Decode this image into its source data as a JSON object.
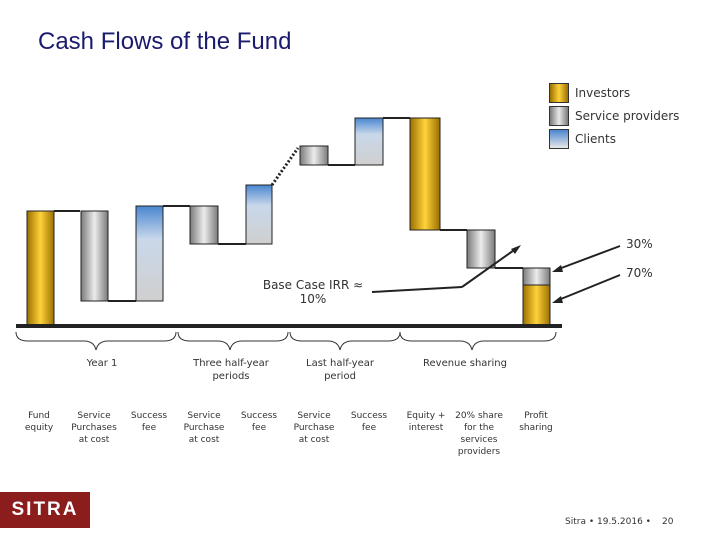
{
  "title": "Cash Flows of the Fund",
  "legend": [
    {
      "label": "Investors",
      "color": "#f0b800"
    },
    {
      "label": "Service providers",
      "color": "#b5b5b5"
    },
    {
      "label": "Clients",
      "color": "#6ea6e0"
    }
  ],
  "chart_data": {
    "type": "waterfall",
    "title": "Cash Flows of the Fund",
    "series": [
      "Investors",
      "Service providers",
      "Clients"
    ],
    "bars": [
      {
        "label": "Fund equity",
        "series": "Investors"
      },
      {
        "label": "Service Purchases at cost",
        "series": "Service providers"
      },
      {
        "label": "Success fee",
        "series": "Clients"
      },
      {
        "label": "Service Purchase at cost",
        "series": "Service providers"
      },
      {
        "label": "Success fee",
        "series": "Clients"
      },
      {
        "label": "Service Purchase at cost",
        "series": "Service providers"
      },
      {
        "label": "Success fee",
        "series": "Clients"
      },
      {
        "label": "Equity + interest",
        "series": "Investors"
      },
      {
        "label": "20% share for the services providers",
        "series": "Service providers"
      },
      {
        "label": "Profit sharing",
        "series": "Investors"
      },
      {
        "label": "Profit sharing",
        "series": "Service providers"
      }
    ]
  },
  "phases": [
    {
      "label": "Year 1"
    },
    {
      "label": "Three half-year periods"
    },
    {
      "label": "Last half-year period"
    },
    {
      "label": "Revenue sharing"
    }
  ],
  "bar_labels": [
    "Fund equity",
    "Service Purchases at cost",
    "Success fee",
    "Service Purchase at cost",
    "Success fee",
    "Service Purchase at cost",
    "Success fee",
    "Equity + interest",
    "20% share for the services providers",
    "Profit sharing"
  ],
  "annotations": {
    "irr_line1": "Base Case IRR ≈",
    "irr_line2": "10%",
    "pct_upper": "30%",
    "pct_lower": "70%"
  },
  "logo": "SITRA",
  "footer": {
    "source": "Sitra • 19.5.2016 •",
    "page": "20"
  }
}
